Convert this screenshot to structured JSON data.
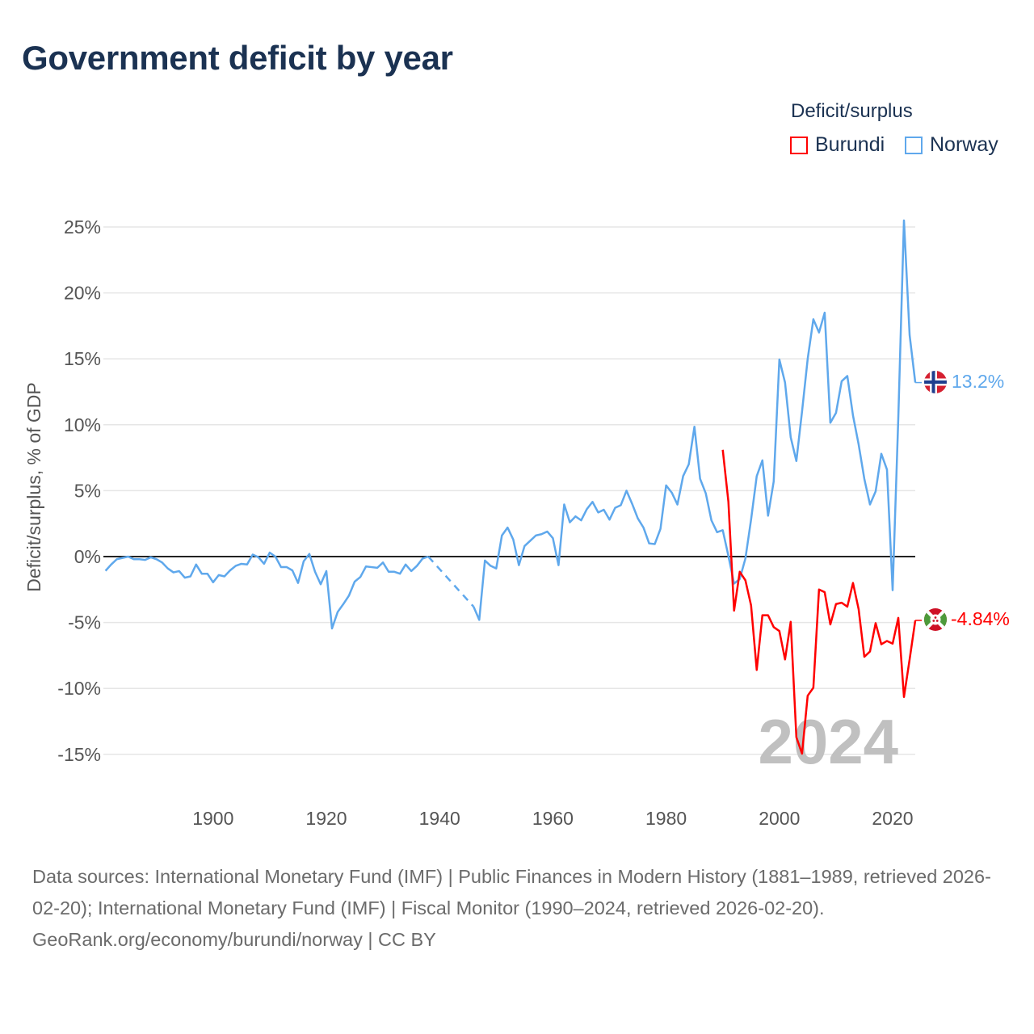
{
  "title": "Government deficit by year",
  "legend": {
    "title": "Deficit/surplus",
    "items": [
      {
        "label": "Burundi",
        "color": "#ff0000"
      },
      {
        "label": "Norway",
        "color": "#5fa8ec"
      }
    ]
  },
  "watermark_year": "2024",
  "footer": {
    "sources": "Data sources: International Monetary Fund (IMF) | Public Finances in Modern History (1881–1989, retrieved 2026-02-20); International Monetary Fund (IMF) | Fiscal Monitor (1990–2024, retrieved 2026-02-20).",
    "credit": "GeoRank.org/economy/burundi/norway | CC BY"
  },
  "chart_data": {
    "type": "line",
    "title": "Government deficit by year",
    "xlabel": "",
    "ylabel": "Deficit/surplus, % of GDP",
    "xlim": [
      1881,
      2024
    ],
    "ylim": [
      -15,
      25
    ],
    "xticks": [
      1900,
      1920,
      1940,
      1960,
      1980,
      2000,
      2020
    ],
    "xtick_labels": [
      "1900",
      "1920",
      "1940",
      "1960",
      "1980",
      "2000",
      "2020"
    ],
    "yticks": [
      25,
      20,
      15,
      10,
      5,
      0,
      -5,
      -10,
      -15
    ],
    "ytick_labels": [
      "25%",
      "20%",
      "15%",
      "10%",
      "5%",
      "0%",
      "-5%",
      "-10%",
      "-15%"
    ],
    "grid": true,
    "legend_position": "top-right",
    "series": [
      {
        "name": "Norway",
        "color": "#5fa8ec",
        "start_year": 1881,
        "end_label": "13.2%",
        "values": [
          -1.08,
          -0.6,
          -0.2,
          -0.1,
          0,
          -0.2,
          -0.2,
          -0.25,
          -0.05,
          -0.2,
          -0.45,
          -0.9,
          -1.2,
          -1.1,
          -1.6,
          -1.5,
          -0.6,
          -1.3,
          -1.3,
          -1.95,
          -1.4,
          -1.5,
          -1.05,
          -0.7,
          -0.55,
          -0.6,
          0.15,
          -0.05,
          -0.55,
          0.3,
          0,
          -0.8,
          -0.8,
          -1.05,
          -2.0,
          -0.35,
          0.2,
          -1.15,
          -2.1,
          -1.1,
          -5.45,
          -4.2,
          -3.6,
          -2.95,
          -1.9,
          -1.55,
          -0.75,
          -0.8,
          -0.85,
          -0.45,
          -1.15,
          -1.15,
          -1.3,
          -0.6,
          -1.1,
          -0.7,
          -0.15,
          0,
          null,
          null,
          null,
          null,
          null,
          null,
          null,
          -3.8,
          -4.8,
          -0.3,
          -0.7,
          -0.9,
          1.6,
          2.2,
          1.3,
          -0.65,
          0.8,
          1.2,
          1.6,
          1.7,
          1.9,
          1.4,
          -0.65,
          3.95,
          2.6,
          3.05,
          2.75,
          3.6,
          4.15,
          3.35,
          3.55,
          2.8,
          3.7,
          3.9,
          5.0,
          4.0,
          2.9,
          2.2,
          1.0,
          0.95,
          2.1,
          5.4,
          4.85,
          3.95,
          6.1,
          7.0,
          9.85,
          5.9,
          4.8,
          2.75,
          1.85,
          2.0,
          0.05,
          -2.05,
          -1.7,
          -0.15,
          2.8,
          6.1,
          7.3,
          3.1,
          5.7,
          14.95,
          13.2,
          9.05,
          7.25,
          11.0,
          15.0,
          18.0,
          17.0,
          18.5,
          10.15,
          10.9,
          13.3,
          13.7,
          10.7,
          8.5,
          5.9,
          3.95,
          4.95,
          7.8,
          6.6,
          -2.55,
          10.5,
          25.5,
          16.8,
          13.2
        ]
      },
      {
        "name": "Burundi",
        "color": "#ff0000",
        "start_year": 1990,
        "end_label": "-4.84%",
        "values": [
          8.1,
          4.15,
          -4.1,
          -1.15,
          -1.8,
          -3.7,
          -8.6,
          -4.45,
          -4.45,
          -5.35,
          -5.65,
          -7.8,
          -4.95,
          -13.7,
          -14.95,
          -10.55,
          -9.95,
          -2.5,
          -2.7,
          -5.15,
          -3.6,
          -3.5,
          -3.8,
          -2.0,
          -4.0,
          -7.6,
          -7.2,
          -5.05,
          -6.65,
          -6.4,
          -6.6,
          -4.65,
          -10.65,
          -7.8,
          -4.84
        ]
      }
    ]
  }
}
